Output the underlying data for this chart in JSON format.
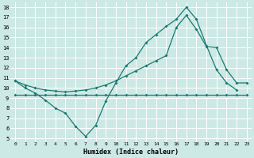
{
  "xlabel": "Humidex (Indice chaleur)",
  "bg_color": "#cce9e5",
  "grid_color": "#ffffff",
  "line_color": "#1a7a72",
  "xlim": [
    -0.5,
    23.5
  ],
  "ylim": [
    4.7,
    18.5
  ],
  "yticks": [
    5,
    6,
    7,
    8,
    9,
    10,
    11,
    12,
    13,
    14,
    15,
    16,
    17,
    18
  ],
  "xticks": [
    0,
    1,
    2,
    3,
    4,
    5,
    6,
    7,
    8,
    9,
    10,
    11,
    12,
    13,
    14,
    15,
    16,
    17,
    18,
    19,
    20,
    21,
    22,
    23
  ],
  "line1_x": [
    0,
    1,
    2,
    3,
    4,
    5,
    6,
    7,
    8,
    9,
    10,
    11,
    12,
    13,
    14,
    15,
    16,
    17,
    18,
    19,
    20,
    21,
    22
  ],
  "line1_y": [
    10.7,
    10.0,
    9.5,
    8.8,
    8.0,
    7.5,
    6.2,
    5.2,
    6.3,
    8.7,
    10.5,
    12.2,
    13.0,
    14.5,
    15.3,
    16.1,
    16.8,
    18.0,
    16.8,
    14.2,
    11.8,
    10.5,
    9.8
  ],
  "line2_x": [
    0,
    1,
    2,
    3,
    4,
    5,
    6,
    7,
    8,
    9,
    10,
    11,
    12,
    13,
    14,
    15,
    16,
    17,
    18,
    19,
    20,
    21,
    22,
    23
  ],
  "line2_y": [
    9.3,
    9.3,
    9.3,
    9.3,
    9.3,
    9.3,
    9.3,
    9.3,
    9.3,
    9.3,
    9.3,
    9.3,
    9.3,
    9.3,
    9.3,
    9.3,
    9.3,
    9.3,
    9.3,
    9.3,
    9.3,
    9.3,
    9.3,
    9.3
  ],
  "line3_x": [
    0,
    1,
    2,
    3,
    4,
    5,
    6,
    7,
    8,
    9,
    10,
    11,
    12,
    13,
    14,
    15,
    16,
    17,
    18,
    19,
    20,
    21,
    22,
    23
  ],
  "line3_y": [
    10.7,
    10.3,
    10.0,
    9.8,
    9.7,
    9.6,
    9.7,
    9.8,
    10.0,
    10.3,
    10.7,
    11.2,
    11.7,
    12.2,
    12.7,
    13.2,
    16.0,
    17.2,
    15.8,
    14.1,
    14.0,
    11.8,
    10.5,
    10.5
  ]
}
